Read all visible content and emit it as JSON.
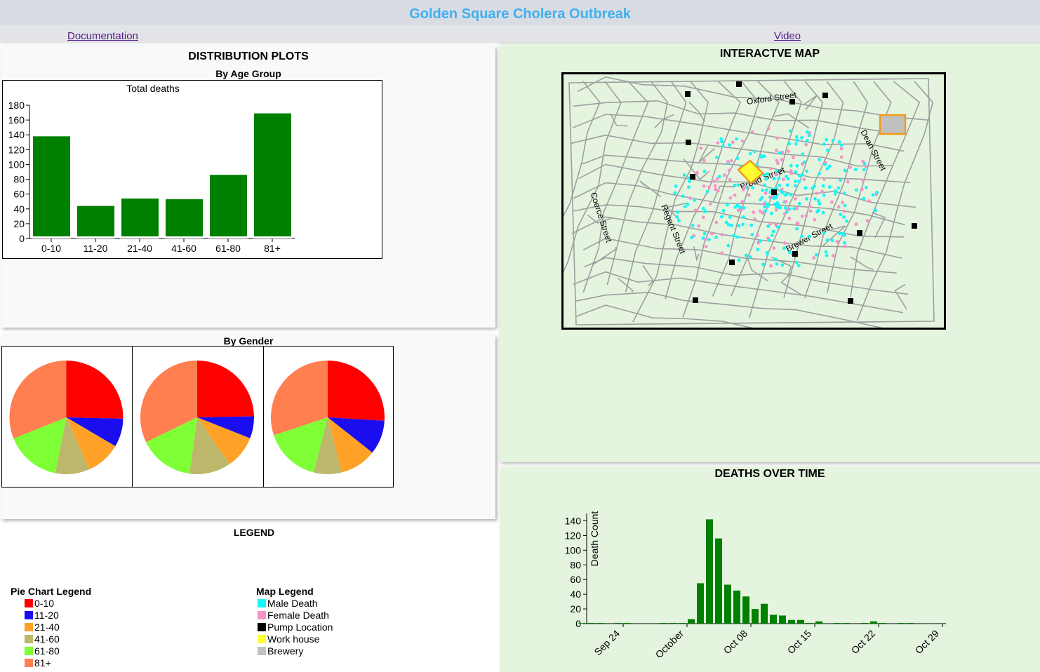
{
  "header": {
    "title": "Golden Square Cholera Outbreak"
  },
  "nav": {
    "documentation": "Documentation",
    "video": "Video"
  },
  "distribution": {
    "title": "DISTRIBUTION PLOTS",
    "age_title": "By Age Group",
    "gender_title": "By Gender"
  },
  "map": {
    "title": "INTERACTVE MAP",
    "streets": [
      "Oxford Street",
      "Dean Street",
      "Broad Street",
      "Coerce Street",
      "Regent Street",
      "Brewer Street"
    ]
  },
  "time": {
    "title": "DEATHS OVER TIME"
  },
  "legend": {
    "title": "LEGEND",
    "pie_title": "Pie Chart Legend",
    "pie_items": [
      {
        "label": "0-10",
        "color": "#ff0000"
      },
      {
        "label": "11-20",
        "color": "#1a0df0"
      },
      {
        "label": "21-40",
        "color": "#ffa126"
      },
      {
        "label": "41-60",
        "color": "#bdb76b"
      },
      {
        "label": "61-80",
        "color": "#7fff35"
      },
      {
        "label": "81+",
        "color": "#ff7f50"
      }
    ],
    "map_title": "Map Legend",
    "map_items": [
      {
        "label": "Male Death",
        "color": "#19f5f5"
      },
      {
        "label": "Female Death",
        "color": "#f593c8"
      },
      {
        "label": "Pump Location",
        "color": "#000000"
      },
      {
        "label": "Work house",
        "color": "#ffff33"
      },
      {
        "label": "Brewery",
        "color": "#c0c0c0"
      }
    ]
  },
  "chart_data": [
    {
      "type": "bar",
      "title": "Total deaths",
      "categories": [
        "0-10",
        "11-20",
        "21-40",
        "41-60",
        "61-80",
        "81+"
      ],
      "values": [
        138,
        44,
        54,
        53,
        86,
        169
      ],
      "ylim": [
        0,
        180
      ],
      "yticks": [
        0,
        20,
        40,
        60,
        80,
        100,
        120,
        140,
        160,
        180
      ],
      "color": "#008000"
    },
    {
      "type": "pie",
      "categories": [
        "0-10",
        "11-20",
        "21-40",
        "41-60",
        "61-80",
        "81+"
      ],
      "colors": [
        "#ff0000",
        "#1a0df0",
        "#ffa126",
        "#bdb76b",
        "#7fff35",
        "#ff7f50"
      ],
      "series": [
        {
          "values": [
            138,
            44,
            54,
            53,
            86,
            169
          ]
        },
        {
          "values": [
            63,
            16,
            24,
            30,
            40,
            82
          ]
        },
        {
          "values": [
            75,
            28,
            30,
            23,
            46,
            87
          ]
        }
      ]
    },
    {
      "type": "bar",
      "ylabel": "Death Count",
      "ylim": [
        0,
        150
      ],
      "yticks": [
        0,
        20,
        40,
        60,
        80,
        100,
        120,
        140
      ],
      "x_ticks": [
        "Sep 24",
        "October",
        "Oct 08",
        "Oct 15",
        "Oct 22",
        "Oct 29"
      ],
      "dates": [
        "Sep 19",
        "Sep 20",
        "Sep 21",
        "Sep 22",
        "Sep 23",
        "Sep 24",
        "Sep 25",
        "Sep 26",
        "Sep 27",
        "Sep 28",
        "Sep 29",
        "Sep 30",
        "Oct 01",
        "Oct 02",
        "Oct 03",
        "Oct 04",
        "Oct 05",
        "Oct 06",
        "Oct 07",
        "Oct 08",
        "Oct 09",
        "Oct 10",
        "Oct 11",
        "Oct 12",
        "Oct 13",
        "Oct 14",
        "Oct 15",
        "Oct 16",
        "Oct 17",
        "Oct 18",
        "Oct 19",
        "Oct 20",
        "Oct 21",
        "Oct 22",
        "Oct 23",
        "Oct 24",
        "Oct 25",
        "Oct 26",
        "Oct 27",
        "Oct 28",
        "Oct 29"
      ],
      "values": [
        1,
        1,
        1,
        0,
        1,
        1,
        0,
        0,
        0,
        1,
        1,
        1,
        6,
        55,
        142,
        116,
        53,
        45,
        37,
        20,
        27,
        12,
        11,
        5,
        5,
        1,
        3,
        0,
        1,
        1,
        0,
        1,
        3,
        1,
        0,
        1,
        1,
        0,
        0,
        0,
        0
      ],
      "color": "#008000"
    }
  ]
}
